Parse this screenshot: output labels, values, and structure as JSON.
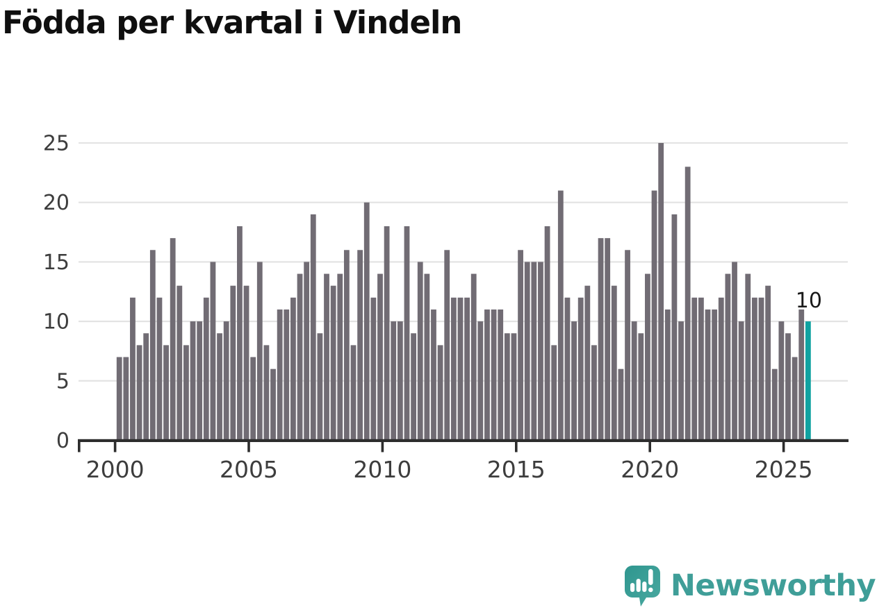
{
  "chart_data": {
    "type": "bar",
    "title": "Födda per kvartal i Vindeln",
    "x_period": "quarterly",
    "x_range": [
      "2000-Q1",
      "2025-Q4"
    ],
    "x_tick_labels": [
      "2000",
      "2005",
      "2010",
      "2015",
      "2020",
      "2025"
    ],
    "y_tick_values": [
      0,
      5,
      10,
      15,
      20,
      25
    ],
    "ylim": [
      0,
      25
    ],
    "grid": "horizontal",
    "bar_color": "#716c74",
    "highlight_last_bar": true,
    "highlight_color": "#10a2a1",
    "annotation": {
      "text": "10",
      "color": "#1a1a1a"
    },
    "axis_color": "#2d2d2d",
    "grid_color": "#e3e3e3",
    "tick_label_color": "#3d3d3d",
    "values": [
      7,
      7,
      12,
      8,
      9,
      16,
      12,
      8,
      17,
      13,
      8,
      10,
      10,
      12,
      15,
      9,
      10,
      13,
      18,
      13,
      7,
      15,
      8,
      6,
      11,
      11,
      12,
      14,
      15,
      19,
      9,
      14,
      13,
      14,
      16,
      8,
      16,
      20,
      12,
      14,
      18,
      10,
      10,
      18,
      9,
      15,
      14,
      11,
      8,
      16,
      12,
      12,
      12,
      14,
      10,
      11,
      11,
      11,
      9,
      9,
      16,
      15,
      15,
      15,
      18,
      8,
      21,
      12,
      10,
      12,
      13,
      8,
      17,
      17,
      13,
      6,
      16,
      10,
      9,
      14,
      21,
      25,
      11,
      19,
      10,
      23,
      12,
      12,
      11,
      11,
      12,
      14,
      15,
      10,
      14,
      12,
      12,
      13,
      6,
      10,
      9,
      7,
      11,
      10
    ]
  },
  "branding": {
    "wordmark": "Newsworthy",
    "wordmark_color": "#3f9e98",
    "icon": "newsworthy-speech-bubble-bar-chart-icon",
    "icon_color_start": "#2f968f",
    "icon_color_end": "#4aa9a0"
  }
}
